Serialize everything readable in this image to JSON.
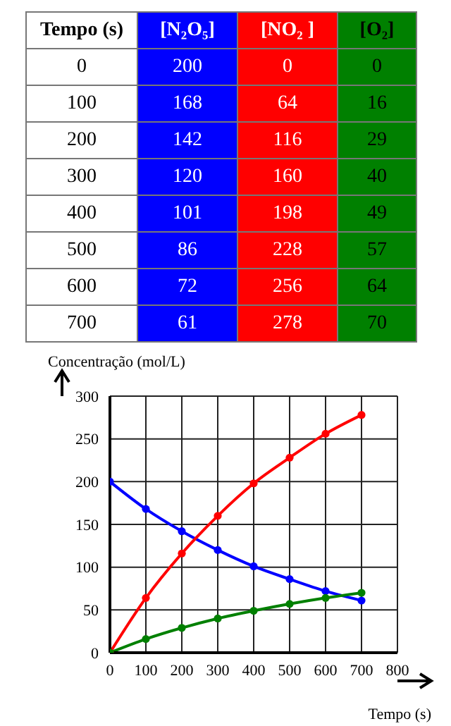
{
  "chart_data": [
    {
      "type": "heatmap",
      "ylabel": "Tempo (s)",
      "categories": [
        "[N₂O₅]",
        "[NO₂ ]",
        "[O₂]"
      ],
      "y_categories": [
        "0",
        "100",
        "200",
        "300",
        "400",
        "500",
        "600",
        "700"
      ],
      "colors": [
        "#0000ff",
        "#ff0000",
        "#008000"
      ],
      "data_labels": true,
      "cells": [
        [
          200,
          0,
          0
        ],
        [
          168,
          64,
          16
        ],
        [
          142,
          116,
          29
        ],
        [
          120,
          160,
          40
        ],
        [
          101,
          198,
          49
        ],
        [
          86,
          228,
          57
        ],
        [
          72,
          256,
          64
        ],
        [
          61,
          278,
          70
        ]
      ]
    },
    {
      "type": "line",
      "xlabel": "Tempo (s)",
      "ylabel": "Concentração (mol/L)",
      "x": [
        0,
        100,
        200,
        300,
        400,
        500,
        600,
        700
      ],
      "series": [
        {
          "color": "#0000ff",
          "values": [
            200,
            168,
            142,
            120,
            101,
            86,
            72,
            61
          ]
        },
        {
          "color": "#ff0000",
          "values": [
            0,
            64,
            116,
            160,
            198,
            228,
            256,
            278
          ]
        },
        {
          "color": "#008000",
          "values": [
            0,
            16,
            29,
            40,
            49,
            57,
            64,
            70
          ]
        }
      ],
      "xlim": [
        0,
        800
      ],
      "xticks": [
        0,
        100,
        200,
        300,
        400,
        500,
        600,
        700,
        800
      ],
      "ylim": [
        0,
        300
      ],
      "yticks": [
        0,
        50,
        100,
        150,
        200,
        250,
        300
      ],
      "grid": true,
      "marker": "circle",
      "line_style": "solid"
    }
  ]
}
